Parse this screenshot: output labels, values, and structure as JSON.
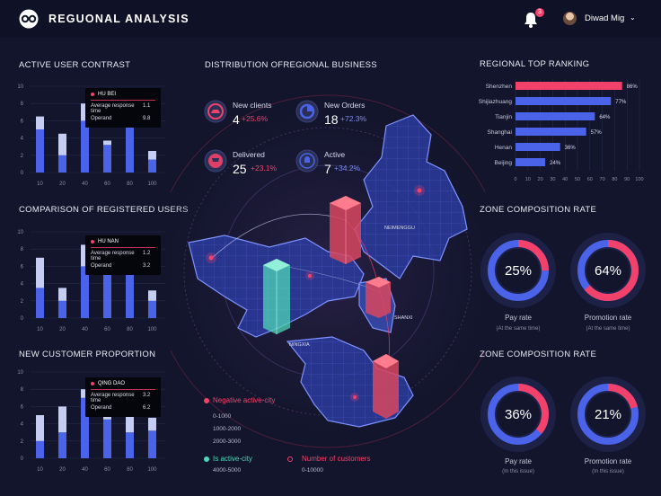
{
  "header": {
    "app_title": "REGUONAL ANALYSIS",
    "notification_count": "3",
    "user_name": "Diwad Mig"
  },
  "colors": {
    "background": "#12152b",
    "accent_pink": "#f2416b",
    "accent_blue": "#4a63e8",
    "light_blue": "#c5cdf2",
    "teal": "#4fd6b8"
  },
  "left_panel": {
    "charts": [
      {
        "title": "ACTIVE USER CONTRAST",
        "tooltip": {
          "city": "HU BEI",
          "response_label": "Average response time",
          "response_value": "1.1",
          "operand_label": "Operand",
          "operand_value": "9.8"
        }
      },
      {
        "title": "COMPARISON OF REGISTERED USERS",
        "tooltip": {
          "city": "HU NAN",
          "response_label": "Average response time",
          "response_value": "1.2",
          "operand_label": "Operand",
          "operand_value": "3.2"
        }
      },
      {
        "title": "NEW CUSTOMER PROPORTION",
        "tooltip": {
          "city": "QING DAO",
          "response_label": "Average response time",
          "response_value": "3.2",
          "operand_label": "Operand",
          "operand_value": "6.2"
        }
      }
    ]
  },
  "chart_data": [
    {
      "type": "bar",
      "title": "ACTIVE USER CONTRAST",
      "categories": [
        "10",
        "20",
        "40",
        "60",
        "80",
        "100"
      ],
      "ylim": [
        0,
        10
      ],
      "yticks": [
        "0",
        "2",
        "4",
        "6",
        "8",
        "10"
      ],
      "series": [
        {
          "values": [
            5,
            2,
            6,
            3.2,
            6,
            1.5
          ]
        },
        {
          "values": [
            1.5,
            2.5,
            2,
            0.5,
            0.8,
            1
          ]
        }
      ]
    },
    {
      "type": "bar",
      "title": "COMPARISON OF REGISTERED USERS",
      "categories": [
        "10",
        "20",
        "40",
        "60",
        "80",
        "100"
      ],
      "ylim": [
        0,
        10
      ],
      "yticks": [
        "0",
        "2",
        "4",
        "6",
        "8",
        "10"
      ],
      "series": [
        {
          "values": [
            3.5,
            2,
            6,
            6,
            8,
            2
          ]
        },
        {
          "values": [
            3.5,
            1.5,
            2.5,
            1.5,
            0.5,
            1.2
          ]
        }
      ]
    },
    {
      "type": "bar",
      "title": "NEW CUSTOMER PROPORTION",
      "categories": [
        "10",
        "20",
        "40",
        "60",
        "80",
        "100"
      ],
      "ylim": [
        0,
        10
      ],
      "yticks": [
        "0",
        "2",
        "4",
        "6",
        "8",
        "10"
      ],
      "series": [
        {
          "values": [
            2,
            3,
            7,
            4.5,
            3,
            3.2
          ]
        },
        {
          "values": [
            3,
            3,
            1,
            2,
            2,
            1.5
          ]
        }
      ]
    },
    {
      "type": "bar",
      "title": "REGIONAL TOP RANKING",
      "orientation": "horizontal",
      "categories": [
        "Shenzhen",
        "Shijiazhuang",
        "Tianjin",
        "Shanghai",
        "Henan",
        "Beijing"
      ],
      "values": [
        86,
        77,
        64,
        57,
        36,
        24
      ],
      "value_labels": [
        "86%",
        "77%",
        "64%",
        "57%",
        "36%",
        "24%"
      ],
      "xlim": [
        0,
        100
      ],
      "xticks": [
        "0",
        "10",
        "20",
        "30",
        "40",
        "50",
        "60",
        "70",
        "80",
        "90",
        "100"
      ]
    },
    {
      "type": "pie",
      "title": "ZONE COMPOSITION RATE",
      "donuts": [
        {
          "label": "Pay rate",
          "sub": "(At the same time)",
          "value": 25,
          "text": "25%"
        },
        {
          "label": "Promotion rate",
          "sub": "(At the same time)",
          "value": 64,
          "text": "64%"
        }
      ]
    },
    {
      "type": "pie",
      "title": "ZONE COMPOSITION RATE",
      "donuts": [
        {
          "label": "Pay rate",
          "sub": "(In this issue)",
          "value": 36,
          "text": "36%"
        },
        {
          "label": "Promotion rate",
          "sub": "(In this issue)",
          "value": 21,
          "text": "21%"
        }
      ]
    }
  ],
  "center": {
    "title": "DISTRIBUTION OFREGIONAL BUSINESS",
    "stats": [
      {
        "label": "New clients",
        "value": "4",
        "change": "+25.6%",
        "icon": "car-icon"
      },
      {
        "label": "New Orders",
        "value": "18",
        "change": "+72.3%",
        "icon": "pie-icon"
      },
      {
        "label": "Delivered",
        "value": "25",
        "change": "+23.1%",
        "icon": "cart-icon"
      },
      {
        "label": "Active",
        "value": "7",
        "change": "+34.2%",
        "icon": "bell-icon"
      }
    ],
    "map_labels": [
      "NEIMENGGU",
      "SHANXI",
      "NINGXIA"
    ],
    "legend": {
      "negative_label": "Negative active-city",
      "negative_ranges": [
        "0-1000",
        "1000-2000",
        "2000-3000"
      ],
      "active_label": "Is active-city",
      "active_range": "4000-5000",
      "customers_label": "Number of customers",
      "customers_range": "0-10000"
    }
  },
  "right_panel": {
    "ranking_title": "REGIONAL TOP RANKING",
    "zone_title_1": "ZONE COMPOSITION RATE",
    "zone_title_2": "ZONE COMPOSITION RATE"
  }
}
